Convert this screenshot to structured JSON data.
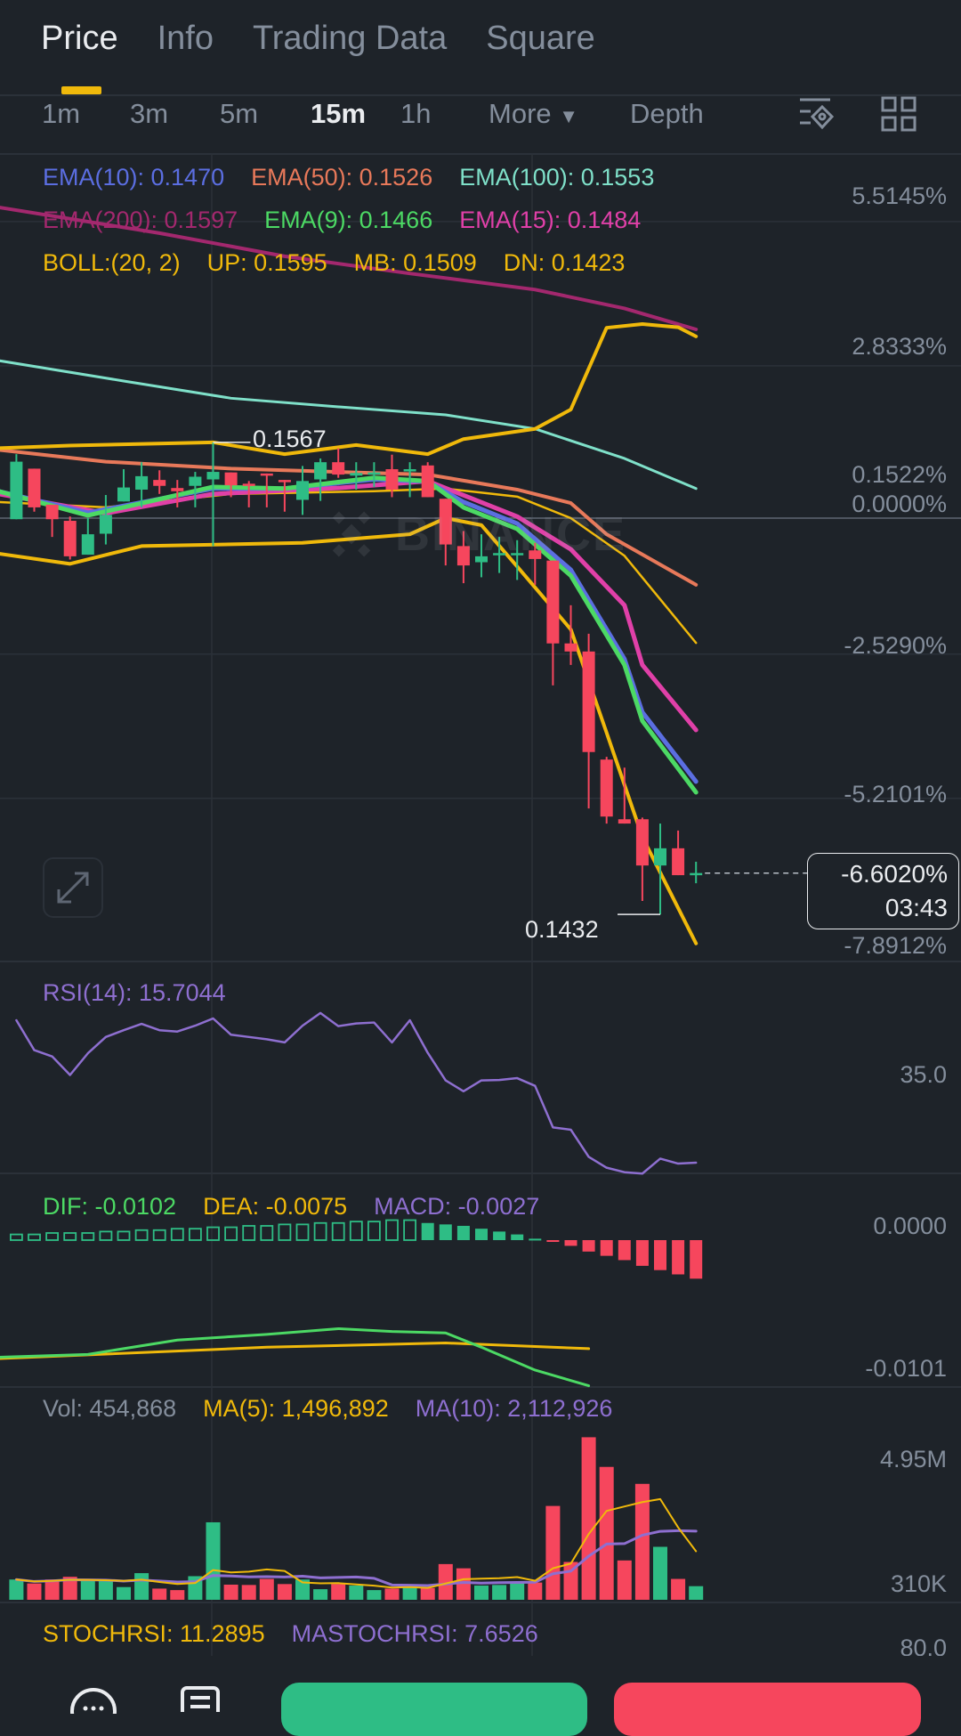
{
  "tabs": [
    {
      "label": "Price",
      "active": true
    },
    {
      "label": "Info",
      "active": false
    },
    {
      "label": "Trading Data",
      "active": false
    },
    {
      "label": "Square",
      "active": false
    }
  ],
  "intervals": [
    {
      "label": "1m",
      "active": false
    },
    {
      "label": "3m",
      "active": false
    },
    {
      "label": "5m",
      "active": false
    },
    {
      "label": "15m",
      "active": true
    },
    {
      "label": "1h",
      "active": false
    }
  ],
  "more_label": "More",
  "depth_label": "Depth",
  "toolbar_icons": [
    "indicator-settings-icon",
    "layout-grid-icon"
  ],
  "legend_row1": [
    {
      "text": "EMA(10): 0.1470",
      "color": "#5b6ee1"
    },
    {
      "text": "EMA(50): 0.1526",
      "color": "#e8795a"
    },
    {
      "text": "EMA(100): 0.1553",
      "color": "#7fe0c9"
    }
  ],
  "legend_row2": [
    {
      "text": "EMA(200): 0.1597",
      "color": "#a3286e"
    },
    {
      "text": "EMA(9): 0.1466",
      "color": "#4cd964"
    },
    {
      "text": "EMA(15): 0.1484",
      "color": "#e040a8"
    }
  ],
  "legend_row3": [
    {
      "text": "BOLL:(20, 2)",
      "color": "#f0b90b"
    },
    {
      "text": "UP: 0.1595",
      "color": "#f0b90b"
    },
    {
      "text": "MB: 0.1509",
      "color": "#f0b90b"
    },
    {
      "text": "DN: 0.1423",
      "color": "#f0b90b"
    }
  ],
  "price_axis": [
    {
      "label": "5.5145%",
      "value": 5.5145
    },
    {
      "label": "2.8333%",
      "value": 2.8333
    },
    {
      "label": "0.1522%",
      "value": 0.1522
    },
    {
      "label": "0.0000%",
      "value": 0
    },
    {
      "label": "-2.5290%",
      "value": -2.529
    },
    {
      "label": "-5.2101%",
      "value": -5.2101
    },
    {
      "label": "-7.8912%",
      "value": -7.8912
    }
  ],
  "high_label": "0.1567",
  "low_label": "0.1432",
  "current": {
    "change": "-6.6020%",
    "countdown": "03:43",
    "value": -6.602
  },
  "watermark": "BINANCE",
  "rsi": {
    "label": "RSI(14): 15.7044",
    "axis": "35.0",
    "color": "#8e6fd0"
  },
  "macd": {
    "dif": "DIF: -0.0102",
    "dea": "DEA: -0.0075",
    "macd": "MACD: -0.0027",
    "axis_top": "0.0000",
    "axis_bottom": "-0.0101"
  },
  "vol": {
    "vol": "Vol: 454,868",
    "ma5": "MA(5): 1,496,892",
    "ma10": "MA(10): 2,112,926",
    "axis_top": "4.95M",
    "axis_bottom": "310K"
  },
  "stochrsi": {
    "label": "STOCHRSI: 11.2895",
    "ma": "MASTOCHRSI: 7.6526",
    "axis": "80.0"
  },
  "colors": {
    "up": "#2ebd85",
    "down": "#f6465d",
    "boll": "#f0b90b",
    "ma5": "#f0b90b",
    "ma10": "#8e6fd0",
    "dif": "#4cd964",
    "dea": "#f0b90b"
  },
  "chart_data": {
    "type": "candlestick",
    "y_unit": "percent change",
    "candles": [
      [
        -0.02,
        1.05,
        1.19,
        -0.02
      ],
      [
        0.92,
        0.2,
        0.92,
        0.12
      ],
      [
        0.25,
        -0.02,
        0.25,
        -0.35
      ],
      [
        -0.05,
        -0.71,
        0.03,
        -0.77
      ],
      [
        -0.68,
        -0.3,
        0.0,
        -0.68
      ],
      [
        -0.29,
        0.06,
        0.43,
        -0.49
      ],
      [
        0.31,
        0.57,
        0.91,
        0.31
      ],
      [
        0.53,
        0.78,
        1.04,
        0.2
      ],
      [
        0.71,
        0.6,
        0.89,
        0.45
      ],
      [
        0.56,
        0.5,
        0.71,
        0.2
      ],
      [
        0.6,
        0.77,
        0.86,
        0.2
      ],
      [
        0.72,
        0.86,
        1.41,
        -0.52
      ],
      [
        0.85,
        0.61,
        0.85,
        0.39
      ],
      [
        0.64,
        0.61,
        0.69,
        0.2
      ],
      [
        0.83,
        0.81,
        0.83,
        0.2
      ],
      [
        0.71,
        0.69,
        0.71,
        0.12
      ],
      [
        0.34,
        0.69,
        0.97,
        0.06
      ],
      [
        0.72,
        1.04,
        1.11,
        0.32
      ],
      [
        1.04,
        0.81,
        1.3,
        0.75
      ],
      [
        0.79,
        0.84,
        1.04,
        0.53
      ],
      [
        0.83,
        0.85,
        1.04,
        0.58
      ],
      [
        0.91,
        0.53,
        1.18,
        0.39
      ],
      [
        0.87,
        0.91,
        1.04,
        0.39
      ],
      [
        0.98,
        0.39,
        1.04,
        0.39
      ],
      [
        0.36,
        -0.49,
        0.36,
        -0.88
      ],
      [
        -0.52,
        -0.88,
        -0.24,
        -1.21
      ],
      [
        -0.82,
        -0.71,
        -0.3,
        -1.1
      ],
      [
        -0.67,
        -0.65,
        -0.35,
        -1.02
      ],
      [
        -0.68,
        -0.65,
        -0.41,
        -1.15
      ],
      [
        -0.6,
        -0.76,
        -0.46,
        -1.24
      ],
      [
        -0.79,
        -2.33,
        -0.79,
        -3.11
      ],
      [
        -2.33,
        -2.48,
        -1.62,
        -2.73
      ],
      [
        -2.48,
        -4.35,
        -2.15,
        -5.4
      ],
      [
        -4.49,
        -5.55,
        -4.44,
        -5.68
      ],
      [
        -5.6,
        -5.68,
        -4.64,
        -5.68
      ],
      [
        -5.6,
        -6.46,
        -5.57,
        -7.12
      ],
      [
        -6.46,
        -6.14,
        -5.68,
        -7.37
      ],
      [
        -6.14,
        -6.64,
        -5.81,
        -6.64
      ],
      [
        -6.6,
        -6.6,
        -6.39,
        -6.79
      ]
    ],
    "candle_fields": [
      "open",
      "close",
      "high",
      "low"
    ],
    "high_index": 11,
    "low_index": 36,
    "lines": [
      {
        "name": "EMA(200)",
        "color": "#a3286e",
        "width": 4,
        "points": [
          [
            -1,
            5.78
          ],
          [
            8,
            5.3
          ],
          [
            15,
            4.87
          ],
          [
            22,
            4.55
          ],
          [
            29,
            4.25
          ],
          [
            34,
            3.9
          ],
          [
            38,
            3.51
          ]
        ]
      },
      {
        "name": "EMA(100)",
        "color": "#7fe0c9",
        "width": 3,
        "points": [
          [
            -1,
            2.93
          ],
          [
            6,
            2.55
          ],
          [
            12,
            2.23
          ],
          [
            18,
            2.07
          ],
          [
            24,
            1.92
          ],
          [
            29,
            1.66
          ],
          [
            34,
            1.11
          ],
          [
            38,
            0.55
          ]
        ]
      },
      {
        "name": "EMA(50)",
        "color": "#e8795a",
        "width": 4,
        "points": [
          [
            -1,
            1.27
          ],
          [
            5,
            1.05
          ],
          [
            12,
            0.92
          ],
          [
            23,
            0.81
          ],
          [
            28,
            0.53
          ],
          [
            31,
            0.28
          ],
          [
            33,
            -0.3
          ],
          [
            38,
            -1.24
          ]
        ]
      },
      {
        "name": "MB",
        "color": "#f0b90b",
        "width": 2.5,
        "points": [
          [
            -1,
            0.3
          ],
          [
            5,
            0.2
          ],
          [
            12,
            0.45
          ],
          [
            20,
            0.5
          ],
          [
            24,
            0.55
          ],
          [
            28,
            0.4
          ],
          [
            31,
            0.0
          ],
          [
            34,
            -0.7
          ],
          [
            38,
            -2.32
          ]
        ]
      },
      {
        "name": "UP",
        "color": "#f0b90b",
        "width": 4,
        "points": [
          [
            -1,
            1.3
          ],
          [
            3,
            1.35
          ],
          [
            11,
            1.41
          ],
          [
            15,
            1.19
          ],
          [
            19,
            1.36
          ],
          [
            23,
            1.19
          ],
          [
            25,
            1.47
          ],
          [
            29,
            1.66
          ],
          [
            31,
            2.02
          ],
          [
            33,
            3.54
          ],
          [
            35,
            3.61
          ],
          [
            37,
            3.55
          ],
          [
            38,
            3.38
          ]
        ]
      },
      {
        "name": "DN",
        "color": "#f0b90b",
        "width": 4,
        "points": [
          [
            -1,
            -0.66
          ],
          [
            3,
            -0.85
          ],
          [
            7,
            -0.52
          ],
          [
            16,
            -0.46
          ],
          [
            22,
            -0.3
          ],
          [
            24,
            0.0
          ],
          [
            26,
            -0.13
          ],
          [
            28,
            -0.9
          ],
          [
            31,
            -2.07
          ],
          [
            33,
            -3.99
          ],
          [
            35,
            -5.93
          ],
          [
            38,
            -7.91
          ]
        ]
      },
      {
        "name": "EMA(15)",
        "color": "#e040a8",
        "width": 5,
        "points": [
          [
            -1,
            0.45
          ],
          [
            5,
            0.09
          ],
          [
            11,
            0.45
          ],
          [
            18,
            0.56
          ],
          [
            23,
            0.69
          ],
          [
            28,
            0.03
          ],
          [
            31,
            -0.58
          ],
          [
            34,
            -1.62
          ],
          [
            35,
            -2.73
          ],
          [
            38,
            -3.94
          ]
        ]
      },
      {
        "name": "EMA(10)",
        "color": "#5b6ee1",
        "width": 5,
        "points": [
          [
            -1,
            0.5
          ],
          [
            4,
            0.1
          ],
          [
            11,
            0.55
          ],
          [
            15,
            0.55
          ],
          [
            20,
            0.72
          ],
          [
            23,
            0.68
          ],
          [
            25,
            0.3
          ],
          [
            28,
            -0.1
          ],
          [
            31,
            -0.96
          ],
          [
            34,
            -2.62
          ],
          [
            35,
            -3.61
          ],
          [
            38,
            -4.9
          ]
        ]
      },
      {
        "name": "EMA(9)",
        "color": "#4cd964",
        "width": 5,
        "points": [
          [
            -1,
            0.5
          ],
          [
            4,
            0.05
          ],
          [
            11,
            0.58
          ],
          [
            15,
            0.55
          ],
          [
            20,
            0.75
          ],
          [
            23,
            0.69
          ],
          [
            25,
            0.2
          ],
          [
            28,
            -0.2
          ],
          [
            31,
            -1.07
          ],
          [
            34,
            -2.73
          ],
          [
            35,
            -3.77
          ],
          [
            38,
            -5.1
          ]
        ]
      }
    ],
    "rsi": [
      47.2,
      40.6,
      39.2,
      35.1,
      39.9,
      43.5,
      45,
      46.4,
      45,
      44.7,
      46,
      47.6,
      44.0,
      43.5,
      43,
      42.3,
      46,
      48.8,
      45.9,
      46.5,
      46.7,
      42.3,
      47.2,
      40,
      33.9,
      31.5,
      33.9,
      34,
      34.4,
      32.7,
      23.5,
      23.0,
      17.0,
      14.6,
      13.6,
      13.3,
      16.6,
      15.5,
      15.7
    ],
    "macd_hist": [
      0.0004,
      0.0004,
      0.0005,
      0.0005,
      0.0005,
      0.0006,
      0.0006,
      0.0007,
      0.0007,
      0.0008,
      0.0008,
      0.0009,
      0.0009,
      0.001,
      0.001,
      0.0011,
      0.0011,
      0.0012,
      0.0012,
      0.0013,
      0.0013,
      0.0014,
      0.0014,
      0.0012,
      0.0011,
      0.001,
      0.0008,
      0.0006,
      0.0004,
      0.0001,
      -0.0001,
      -0.0004,
      -0.0008,
      -0.0011,
      -0.0014,
      -0.0018,
      -0.0021,
      -0.0024,
      -0.0027
    ],
    "dif": [
      [
        -1,
        -0.0082
      ],
      [
        4,
        -0.008
      ],
      [
        9,
        -0.007
      ],
      [
        14,
        -0.0066
      ],
      [
        18,
        -0.0062
      ],
      [
        21,
        -0.0064
      ],
      [
        24,
        -0.0065
      ],
      [
        26,
        -0.0075
      ],
      [
        29,
        -0.0091
      ],
      [
        32,
        -0.0102
      ]
    ],
    "dea": [
      [
        -1,
        -0.0083
      ],
      [
        14,
        -0.0075
      ],
      [
        24,
        -0.0072
      ],
      [
        32,
        -0.0076
      ]
    ],
    "volume_millions": [
      0.67,
      0.54,
      0.67,
      0.76,
      0.65,
      0.62,
      0.42,
      0.88,
      0.37,
      0.32,
      0.78,
      2.56,
      0.5,
      0.49,
      0.69,
      0.52,
      0.67,
      0.35,
      0.52,
      0.47,
      0.32,
      0.37,
      0.42,
      0.39,
      1.18,
      1.04,
      0.47,
      0.49,
      0.57,
      0.57,
      3.1,
      1.25,
      5.37,
      4.39,
      1.3,
      3.83,
      1.75,
      0.69,
      0.45
    ]
  }
}
